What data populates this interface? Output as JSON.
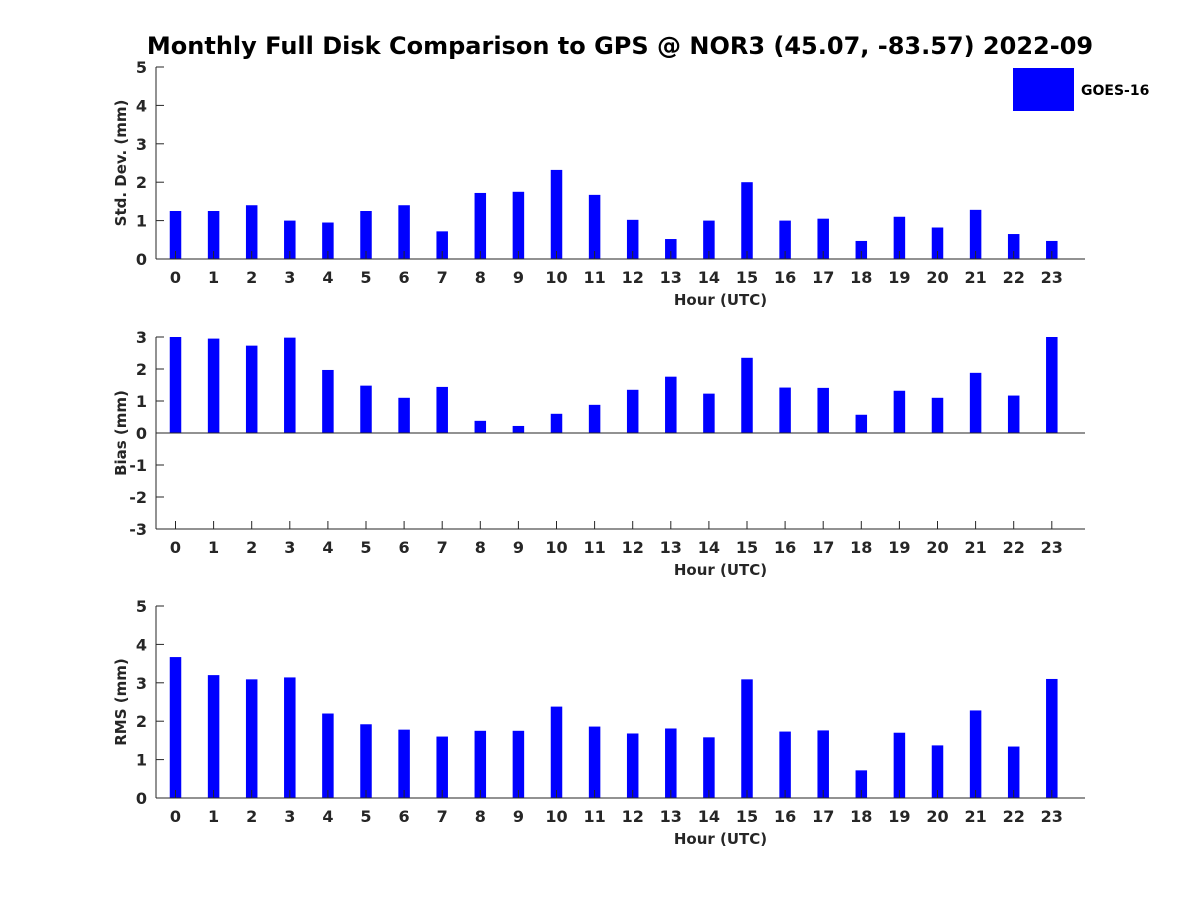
{
  "figure": {
    "title": "Monthly Full Disk Comparison to GPS @ NOR3 (45.07, -83.57) 2022-09"
  },
  "legend": {
    "label": "GOES-16",
    "color": "#0000ff",
    "placement": "top-right"
  },
  "chart_data": [
    {
      "type": "bar",
      "xlabel": "Hour (UTC)",
      "ylabel": "Std. Dev. (mm)",
      "ylim": [
        0,
        5
      ],
      "yticks": [
        "0",
        "1",
        "2",
        "3",
        "4",
        "5"
      ],
      "categories": [
        "0",
        "1",
        "2",
        "3",
        "4",
        "5",
        "6",
        "7",
        "8",
        "9",
        "10",
        "11",
        "12",
        "13",
        "14",
        "15",
        "16",
        "17",
        "18",
        "19",
        "20",
        "21",
        "22",
        "23"
      ],
      "series": [
        {
          "name": "GOES-16",
          "color": "#0000ff",
          "values": [
            1.25,
            1.25,
            1.4,
            1.0,
            0.95,
            1.25,
            1.4,
            0.72,
            1.72,
            1.75,
            2.32,
            1.67,
            1.02,
            0.52,
            1.0,
            2.0,
            1.0,
            1.05,
            0.47,
            1.1,
            0.82,
            1.28,
            0.65,
            0.47
          ]
        }
      ]
    },
    {
      "type": "bar",
      "xlabel": "Hour (UTC)",
      "ylabel": "Bias (mm)",
      "ylim": [
        -3,
        3
      ],
      "yticks": [
        "-3",
        "-2",
        "-1",
        "0",
        "1",
        "2",
        "3"
      ],
      "categories": [
        "0",
        "1",
        "2",
        "3",
        "4",
        "5",
        "6",
        "7",
        "8",
        "9",
        "10",
        "11",
        "12",
        "13",
        "14",
        "15",
        "16",
        "17",
        "18",
        "19",
        "20",
        "21",
        "22",
        "23"
      ],
      "series": [
        {
          "name": "GOES-16",
          "color": "#0000ff",
          "values": [
            3.0,
            2.95,
            2.73,
            2.98,
            1.97,
            1.48,
            1.1,
            1.44,
            0.38,
            0.22,
            0.6,
            0.88,
            1.35,
            1.76,
            1.23,
            2.35,
            1.42,
            1.41,
            0.57,
            1.32,
            1.1,
            1.88,
            1.17,
            3.0
          ]
        }
      ]
    },
    {
      "type": "bar",
      "xlabel": "Hour (UTC)",
      "ylabel": "RMS (mm)",
      "ylim": [
        0,
        5
      ],
      "yticks": [
        "0",
        "1",
        "2",
        "3",
        "4",
        "5"
      ],
      "categories": [
        "0",
        "1",
        "2",
        "3",
        "4",
        "5",
        "6",
        "7",
        "8",
        "9",
        "10",
        "11",
        "12",
        "13",
        "14",
        "15",
        "16",
        "17",
        "18",
        "19",
        "20",
        "21",
        "22",
        "23"
      ],
      "series": [
        {
          "name": "GOES-16",
          "color": "#0000ff",
          "values": [
            3.67,
            3.2,
            3.09,
            3.14,
            2.2,
            1.92,
            1.78,
            1.6,
            1.75,
            1.75,
            2.38,
            1.86,
            1.68,
            1.81,
            1.58,
            3.09,
            1.73,
            1.76,
            0.72,
            1.7,
            1.37,
            2.28,
            1.34,
            3.1
          ]
        }
      ]
    }
  ]
}
